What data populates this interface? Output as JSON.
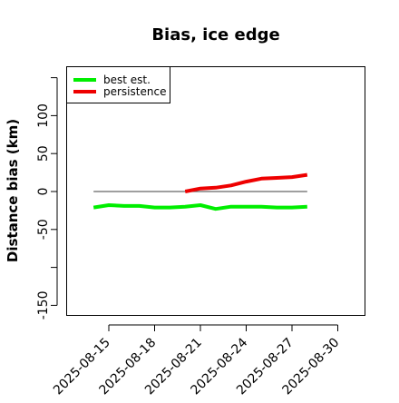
{
  "chart_data": {
    "type": "line",
    "title": "Bias, ice edge",
    "xlabel": "",
    "ylabel": "Distance bias (km)",
    "x_ticks": [
      "2025-08-15",
      "2025-08-18",
      "2025-08-21",
      "2025-08-24",
      "2025-08-27",
      "2025-08-30"
    ],
    "y_ticks": [
      "-150",
      "-50",
      "0",
      "50",
      "100"
    ],
    "ylim": [
      -155,
      160
    ],
    "grid": false,
    "reference_line": {
      "y": 0,
      "x_from": "2025-08-14",
      "x_to": "2025-08-28",
      "color": "#666666"
    },
    "legend": {
      "position": "top-left"
    },
    "series": [
      {
        "name": "best est.",
        "color": "#00ee00",
        "x": [
          "2025-08-14",
          "2025-08-15",
          "2025-08-16",
          "2025-08-17",
          "2025-08-18",
          "2025-08-19",
          "2025-08-20",
          "2025-08-21",
          "2025-08-22",
          "2025-08-23",
          "2025-08-24",
          "2025-08-25",
          "2025-08-26",
          "2025-08-27",
          "2025-08-28"
        ],
        "values": [
          -21,
          -18,
          -19,
          -19,
          -21,
          -21,
          -20,
          -18,
          -23,
          -20,
          -20,
          -20,
          -21,
          -21,
          -20
        ]
      },
      {
        "name": "persistence",
        "color": "#ee0000",
        "x": [
          "2025-08-20",
          "2025-08-21",
          "2025-08-22",
          "2025-08-23",
          "2025-08-24",
          "2025-08-25",
          "2025-08-26",
          "2025-08-27",
          "2025-08-28"
        ],
        "values": [
          0,
          4,
          5,
          8,
          13,
          17,
          18,
          19,
          22
        ]
      }
    ]
  }
}
